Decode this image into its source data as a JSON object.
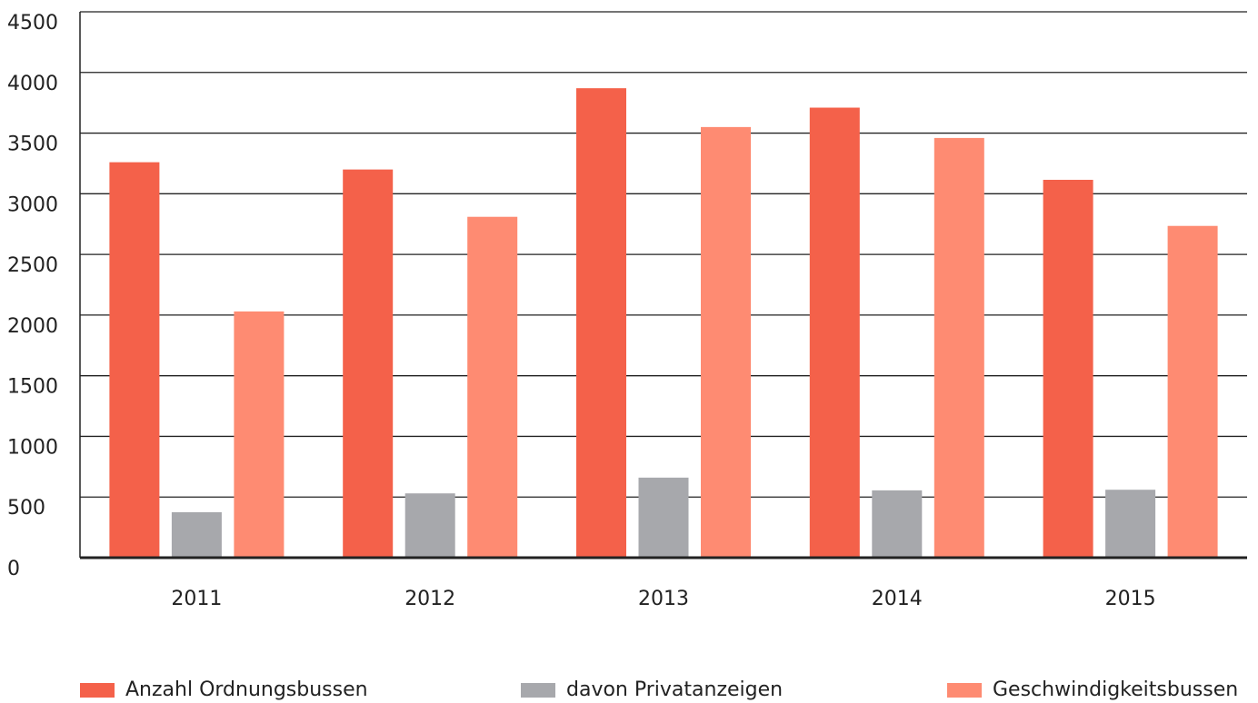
{
  "chart_data": {
    "type": "bar",
    "categories": [
      "2011",
      "2012",
      "2013",
      "2014",
      "2015"
    ],
    "series": [
      {
        "name": "Anzahl Ordnungsbussen",
        "color": "#f4614a",
        "values": [
          3260,
          3200,
          3870,
          3710,
          3115
        ]
      },
      {
        "name": "davon Privatanzeigen",
        "color": "#a7a8ac",
        "values": [
          375,
          530,
          660,
          555,
          560
        ]
      },
      {
        "name": "Geschwindigkeitsbussen",
        "color": "#fe8b72",
        "values": [
          2030,
          2810,
          3550,
          3460,
          2735
        ]
      }
    ],
    "ylim": [
      0,
      4500
    ],
    "yticks": [
      0,
      500,
      1000,
      1500,
      2000,
      2500,
      3000,
      3500,
      4000,
      4500
    ],
    "grid": true,
    "legend": "bottom"
  }
}
